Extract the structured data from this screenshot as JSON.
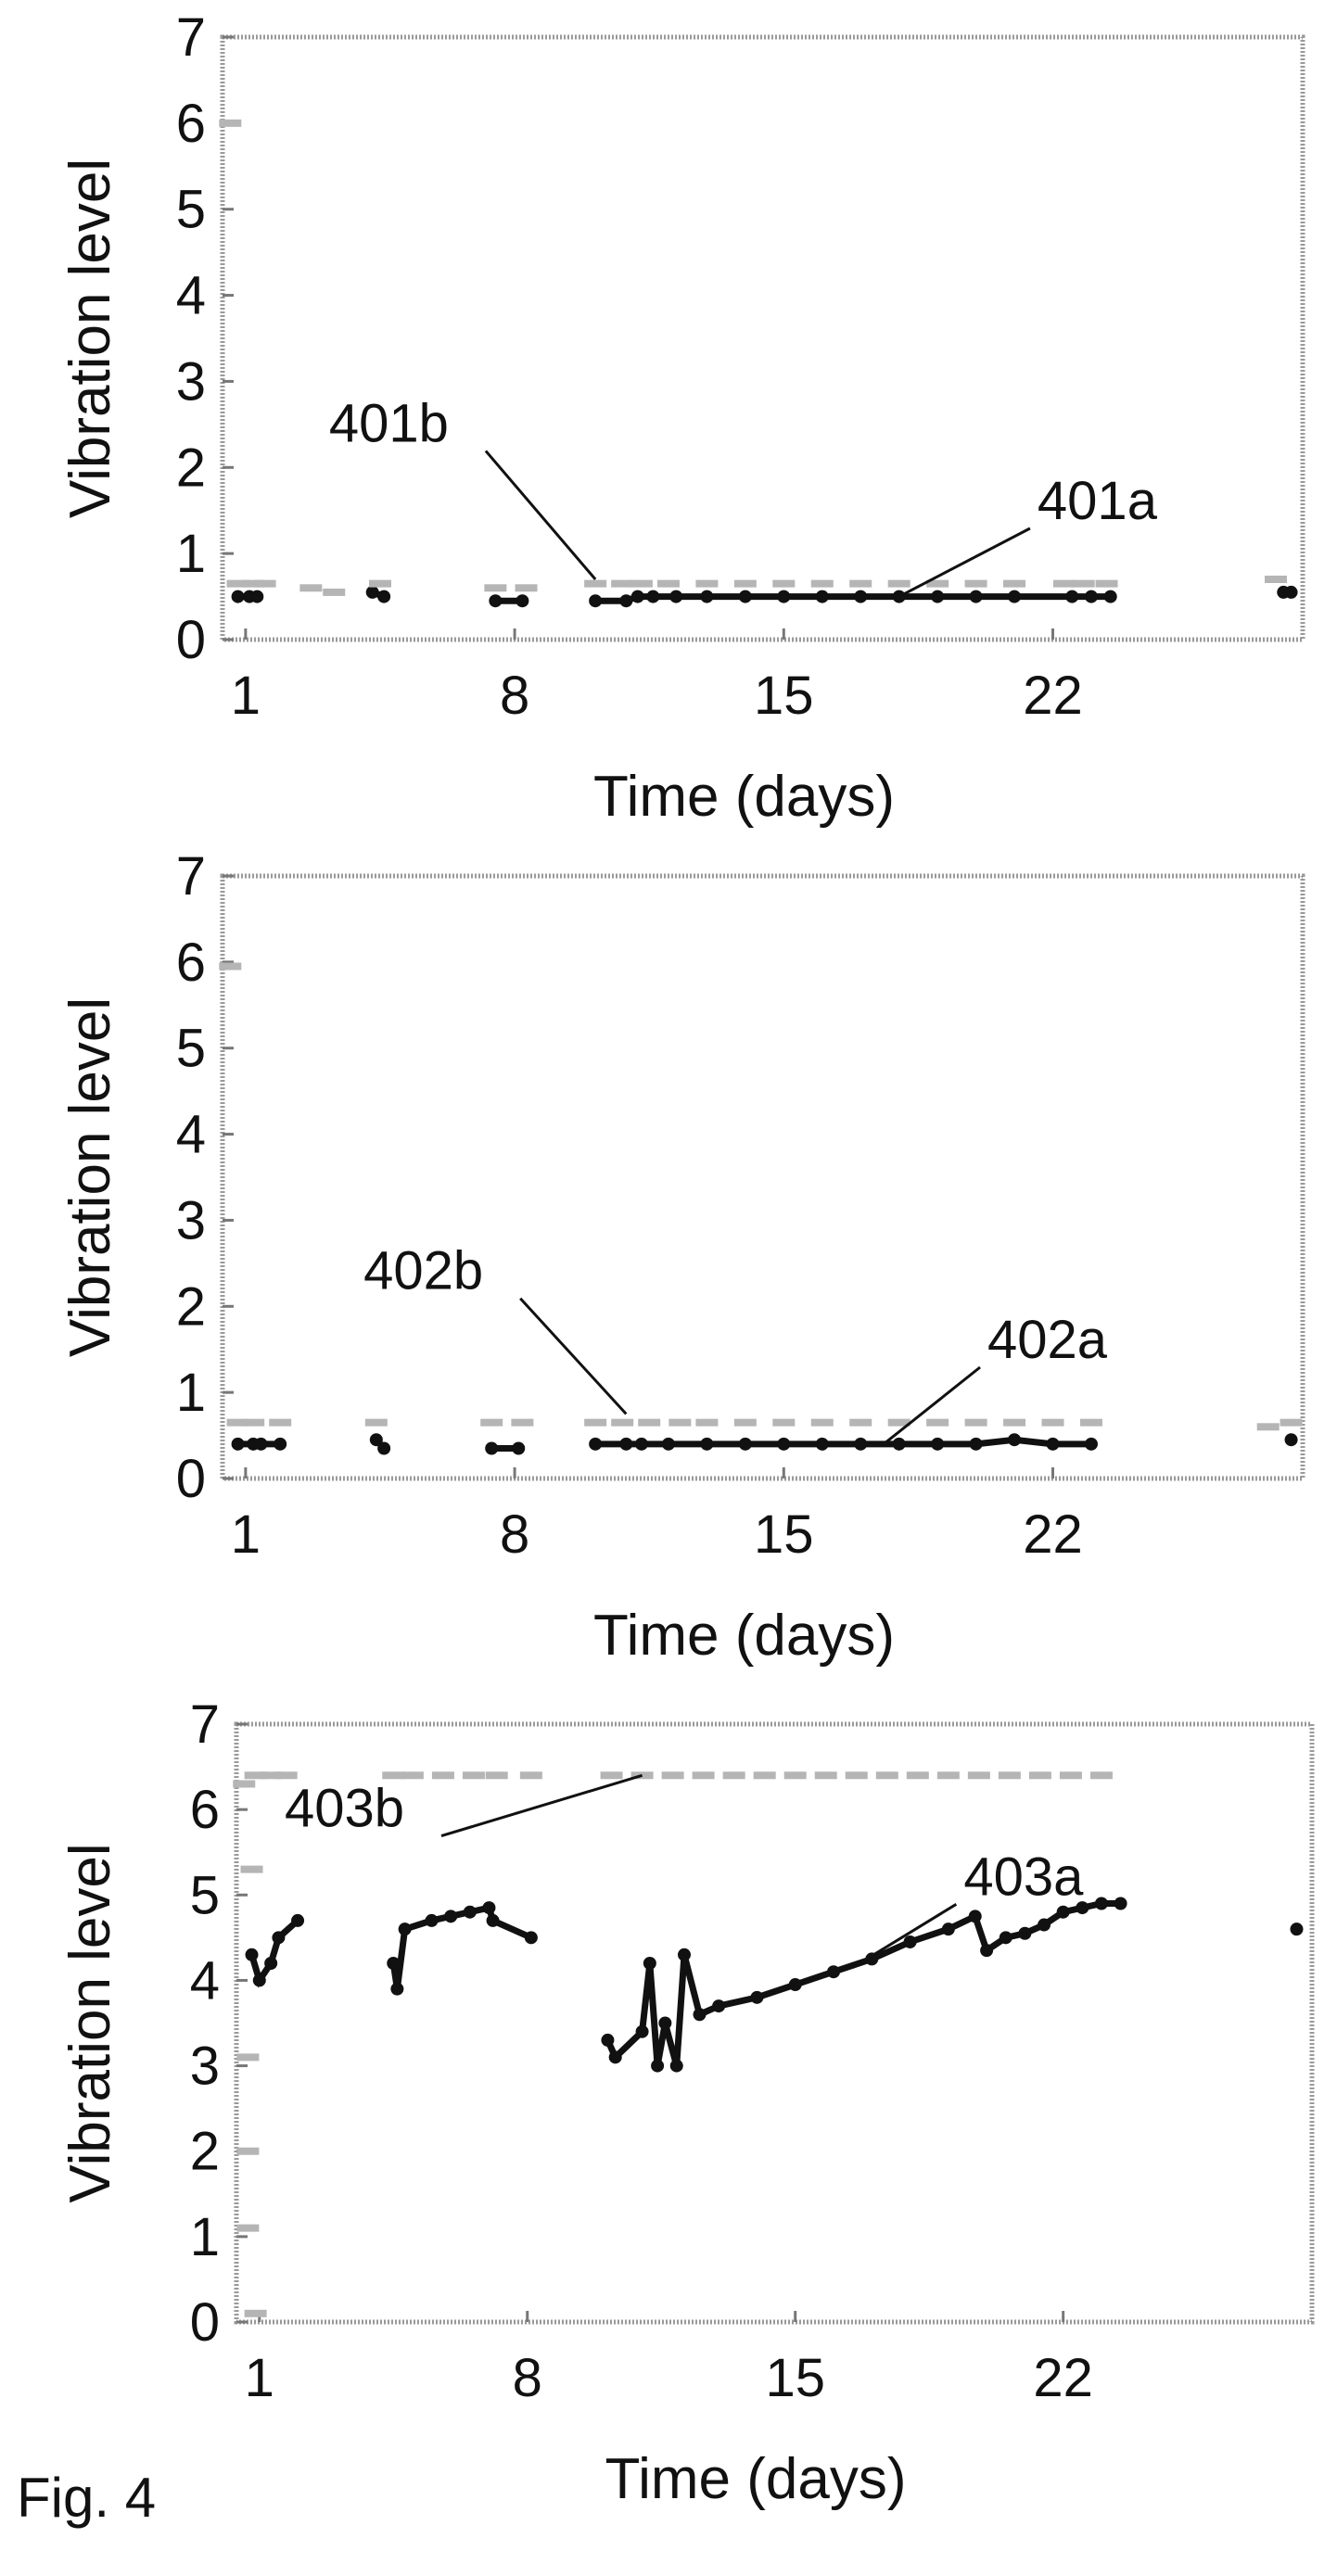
{
  "figure_label": "Fig. 4",
  "chart_data": [
    {
      "type": "scatter",
      "xlabel": "Time (days)",
      "ylabel": "Vibration level",
      "xticks": [
        1,
        8,
        15,
        22
      ],
      "yticks": [
        0,
        1,
        2,
        3,
        4,
        5,
        6,
        7
      ],
      "xlim": [
        0.4,
        28.5
      ],
      "ylim": [
        0,
        7
      ],
      "grid": false,
      "series": [
        {
          "label": "401a",
          "style": "dark",
          "points": [
            [
              0.8,
              0.5
            ],
            [
              1.1,
              0.5
            ],
            [
              1.3,
              0.5
            ],
            [
              4.3,
              0.55
            ],
            [
              4.6,
              0.5
            ],
            [
              7.5,
              0.45
            ],
            [
              8.2,
              0.45
            ],
            [
              10.1,
              0.45
            ],
            [
              10.9,
              0.45
            ],
            [
              11.2,
              0.5
            ],
            [
              11.6,
              0.5
            ],
            [
              12.2,
              0.5
            ],
            [
              13,
              0.5
            ],
            [
              14,
              0.5
            ],
            [
              15,
              0.5
            ],
            [
              16,
              0.5
            ],
            [
              17,
              0.5
            ],
            [
              18,
              0.5
            ],
            [
              19,
              0.5
            ],
            [
              20,
              0.5
            ],
            [
              21,
              0.5
            ],
            [
              22.5,
              0.5
            ],
            [
              23,
              0.5
            ],
            [
              23.5,
              0.5
            ],
            [
              28,
              0.55
            ],
            [
              28.2,
              0.55
            ]
          ]
        },
        {
          "label": "401b",
          "style": "light",
          "points": [
            [
              0.8,
              0.65
            ],
            [
              1.2,
              0.65
            ],
            [
              1.5,
              0.65
            ],
            [
              2.7,
              0.6
            ],
            [
              3.3,
              0.55
            ],
            [
              4.5,
              0.65
            ],
            [
              7.5,
              0.6
            ],
            [
              8.3,
              0.6
            ],
            [
              10.1,
              0.65
            ],
            [
              10.8,
              0.65
            ],
            [
              11.3,
              0.65
            ],
            [
              12,
              0.65
            ],
            [
              13,
              0.65
            ],
            [
              14,
              0.65
            ],
            [
              15,
              0.65
            ],
            [
              16,
              0.65
            ],
            [
              17,
              0.65
            ],
            [
              18,
              0.65
            ],
            [
              19,
              0.65
            ],
            [
              20,
              0.65
            ],
            [
              21,
              0.65
            ],
            [
              22.3,
              0.65
            ],
            [
              22.8,
              0.65
            ],
            [
              23.4,
              0.65
            ],
            [
              27.8,
              0.7
            ],
            [
              0.6,
              6
            ]
          ]
        }
      ],
      "annotations": [
        {
          "text": "401b",
          "x": 10.1,
          "y": 0.7,
          "text_x": 5.8,
          "text_y": 2.3
        },
        {
          "text": "401a",
          "x": 18,
          "y": 0.5,
          "text_x": 21.6,
          "text_y": 1.4
        }
      ]
    },
    {
      "type": "scatter",
      "xlabel": "Time (days)",
      "ylabel": "Vibration level",
      "xticks": [
        1,
        8,
        15,
        22
      ],
      "yticks": [
        0,
        1,
        2,
        3,
        4,
        5,
        6,
        7
      ],
      "xlim": [
        0.4,
        28.5
      ],
      "ylim": [
        0,
        7
      ],
      "grid": false,
      "series": [
        {
          "label": "402a",
          "style": "dark",
          "points": [
            [
              0.8,
              0.4
            ],
            [
              1.2,
              0.4
            ],
            [
              1.4,
              0.4
            ],
            [
              1.9,
              0.4
            ],
            [
              4.4,
              0.45
            ],
            [
              4.6,
              0.35
            ],
            [
              7.4,
              0.35
            ],
            [
              8.1,
              0.35
            ],
            [
              10.1,
              0.4
            ],
            [
              10.9,
              0.4
            ],
            [
              11.3,
              0.4
            ],
            [
              12,
              0.4
            ],
            [
              13,
              0.4
            ],
            [
              14,
              0.4
            ],
            [
              15,
              0.4
            ],
            [
              16,
              0.4
            ],
            [
              17,
              0.4
            ],
            [
              18,
              0.4
            ],
            [
              19,
              0.4
            ],
            [
              20,
              0.4
            ],
            [
              21,
              0.45
            ],
            [
              22,
              0.4
            ],
            [
              23,
              0.4
            ],
            [
              28.2,
              0.45
            ]
          ]
        },
        {
          "label": "402b",
          "style": "light",
          "points": [
            [
              0.8,
              0.65
            ],
            [
              1.2,
              0.65
            ],
            [
              1.9,
              0.65
            ],
            [
              4.4,
              0.65
            ],
            [
              7.4,
              0.65
            ],
            [
              8.2,
              0.65
            ],
            [
              10.1,
              0.65
            ],
            [
              10.8,
              0.65
            ],
            [
              11.5,
              0.65
            ],
            [
              12.3,
              0.65
            ],
            [
              13,
              0.65
            ],
            [
              14,
              0.65
            ],
            [
              15,
              0.65
            ],
            [
              16,
              0.65
            ],
            [
              17,
              0.65
            ],
            [
              18,
              0.65
            ],
            [
              19,
              0.65
            ],
            [
              20,
              0.65
            ],
            [
              21,
              0.65
            ],
            [
              22,
              0.65
            ],
            [
              23,
              0.65
            ],
            [
              27.6,
              0.6
            ],
            [
              28.2,
              0.65
            ],
            [
              0.6,
              5.95
            ]
          ]
        }
      ],
      "annotations": [
        {
          "text": "402b",
          "x": 10.9,
          "y": 0.75,
          "text_x": 6.7,
          "text_y": 2.2
        },
        {
          "text": "402a",
          "x": 17.6,
          "y": 0.4,
          "text_x": 20.3,
          "text_y": 1.4
        }
      ]
    },
    {
      "type": "scatter",
      "xlabel": "Time (days)",
      "ylabel": "Vibration level",
      "xticks": [
        1,
        8,
        15,
        22
      ],
      "yticks": [
        0,
        1,
        2,
        3,
        4,
        5,
        6,
        7
      ],
      "xlim": [
        0.4,
        28.5
      ],
      "ylim": [
        0,
        7
      ],
      "grid": false,
      "series": [
        {
          "label": "403a",
          "style": "dark",
          "points": [
            [
              0.8,
              4.3
            ],
            [
              1.0,
              4.0
            ],
            [
              1.3,
              4.2
            ],
            [
              1.5,
              4.5
            ],
            [
              2.0,
              4.7
            ],
            [
              4.5,
              4.2
            ],
            [
              4.6,
              3.9
            ],
            [
              4.8,
              4.6
            ],
            [
              5.5,
              4.7
            ],
            [
              6,
              4.75
            ],
            [
              6.5,
              4.8
            ],
            [
              7.0,
              4.85
            ],
            [
              7.1,
              4.7
            ],
            [
              8.1,
              4.5
            ],
            [
              10.1,
              3.3
            ],
            [
              10.3,
              3.1
            ],
            [
              11.0,
              3.4
            ],
            [
              11.2,
              4.2
            ],
            [
              11.4,
              3.0
            ],
            [
              11.6,
              3.5
            ],
            [
              11.9,
              3.0
            ],
            [
              12.1,
              4.3
            ],
            [
              12.5,
              3.6
            ],
            [
              13,
              3.7
            ],
            [
              14,
              3.8
            ],
            [
              15,
              3.95
            ],
            [
              16,
              4.1
            ],
            [
              17,
              4.25
            ],
            [
              18,
              4.45
            ],
            [
              19,
              4.6
            ],
            [
              19.7,
              4.75
            ],
            [
              20,
              4.35
            ],
            [
              20.5,
              4.5
            ],
            [
              21,
              4.55
            ],
            [
              21.5,
              4.65
            ],
            [
              22,
              4.8
            ],
            [
              22.5,
              4.85
            ],
            [
              23,
              4.9
            ],
            [
              23.5,
              4.9
            ],
            [
              28.1,
              4.6
            ]
          ]
        },
        {
          "label": "403b",
          "style": "light",
          "points": [
            [
              0.6,
              6.3
            ],
            [
              0.9,
              6.4
            ],
            [
              1.3,
              6.4
            ],
            [
              1.7,
              6.4
            ],
            [
              4.5,
              6.4
            ],
            [
              5,
              6.4
            ],
            [
              5.8,
              6.4
            ],
            [
              6.6,
              6.4
            ],
            [
              7.2,
              6.4
            ],
            [
              8.1,
              6.4
            ],
            [
              10.2,
              6.4
            ],
            [
              11,
              6.4
            ],
            [
              11.8,
              6.4
            ],
            [
              12.6,
              6.4
            ],
            [
              13.4,
              6.4
            ],
            [
              14.2,
              6.4
            ],
            [
              15,
              6.4
            ],
            [
              15.8,
              6.4
            ],
            [
              16.6,
              6.4
            ],
            [
              17.4,
              6.4
            ],
            [
              18.2,
              6.4
            ],
            [
              19,
              6.4
            ],
            [
              19.8,
              6.4
            ],
            [
              20.6,
              6.4
            ],
            [
              21.4,
              6.4
            ],
            [
              22.2,
              6.4
            ],
            [
              23,
              6.4
            ],
            [
              0.8,
              5.3
            ],
            [
              0.7,
              3.1
            ],
            [
              0.7,
              2.0
            ],
            [
              0.7,
              1.1
            ],
            [
              0.9,
              0.1
            ]
          ]
        }
      ],
      "annotations": [
        {
          "text": "403b",
          "x": 11.0,
          "y": 6.4,
          "text_x": 4.3,
          "text_y": 5.8
        },
        {
          "text": "403a",
          "x": 16.5,
          "y": 4.15,
          "text_x": 19.4,
          "text_y": 5.0
        }
      ]
    }
  ]
}
